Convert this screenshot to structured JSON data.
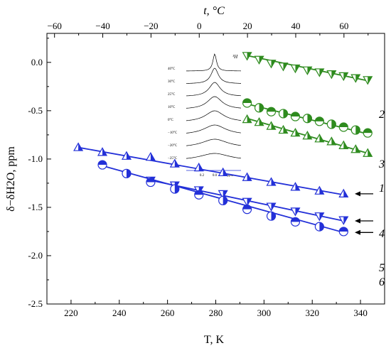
{
  "chart_data": {
    "type": "scatter",
    "title": "",
    "xlabel": "T, K",
    "ylabel": "δ−δH2O, ppm",
    "x2label": "t, °C",
    "xlim": [
      210,
      350
    ],
    "ylim": [
      -2.5,
      0.3
    ],
    "x2lim": [
      -63.15,
      76.85
    ],
    "grid": false,
    "x_ticks": [
      220,
      240,
      260,
      280,
      300,
      320,
      340
    ],
    "y_ticks": [
      0.0,
      -0.5,
      -1.0,
      -1.5,
      -2.0,
      -2.5
    ],
    "x2_ticks": [
      -60,
      -40,
      -20,
      0,
      20,
      40,
      60
    ],
    "x_tick_labels": [
      "220",
      "240",
      "260",
      "280",
      "300",
      "320",
      "340"
    ],
    "y_tick_labels": [
      "0.0",
      "-0.5",
      "-1.0",
      "-1.5",
      "-2.0",
      "-2.5"
    ],
    "x2_tick_labels": [
      "−60",
      "−40",
      "−20",
      "0",
      "20",
      "40",
      "60"
    ],
    "series": [
      {
        "label": "2",
        "color": "#2e8b1e",
        "marker": "triangle-down",
        "x": [
          293,
          298,
          303,
          308,
          313,
          318,
          323,
          328,
          333,
          338,
          343
        ],
        "y": [
          0.07,
          0.03,
          -0.01,
          -0.04,
          -0.06,
          -0.08,
          -0.1,
          -0.12,
          -0.14,
          -0.16,
          -0.18
        ],
        "fit": [
          [
            293,
            0.07
          ],
          [
            343,
            -0.19
          ]
        ]
      },
      {
        "label": "3",
        "color": "#2e8b1e",
        "marker": "circle-half",
        "x": [
          293,
          298,
          303,
          308,
          313,
          318,
          323,
          328,
          333,
          338,
          343
        ],
        "y": [
          -0.42,
          -0.47,
          -0.51,
          -0.53,
          -0.56,
          -0.58,
          -0.61,
          -0.64,
          -0.67,
          -0.7,
          -0.73
        ],
        "fit": [
          [
            293,
            -0.43
          ],
          [
            343,
            -0.74
          ]
        ]
      },
      {
        "label": "1",
        "color": "#2e8b1e",
        "marker": "triangle-up",
        "x": [
          293,
          298,
          303,
          308,
          313,
          318,
          323,
          328,
          333,
          338,
          343
        ],
        "y": [
          -0.59,
          -0.62,
          -0.66,
          -0.7,
          -0.73,
          -0.76,
          -0.79,
          -0.82,
          -0.86,
          -0.9,
          -0.94
        ],
        "fit": [
          [
            293,
            -0.58
          ],
          [
            343,
            -0.94
          ]
        ]
      },
      {
        "label": "4",
        "color": "#2330d8",
        "marker": "triangle-up",
        "x": [
          223,
          233,
          243,
          253,
          263,
          273,
          283,
          293,
          303,
          313,
          323,
          333
        ],
        "y": [
          -0.88,
          -0.93,
          -0.97,
          -0.98,
          -1.05,
          -1.09,
          -1.14,
          -1.19,
          -1.24,
          -1.29,
          -1.33,
          -1.36
        ],
        "fit": [
          [
            223,
            -0.88
          ],
          [
            333,
            -1.37
          ]
        ]
      },
      {
        "label": "5",
        "color": "#2330d8",
        "marker": "triangle-down",
        "x": [
          253,
          263,
          273,
          283,
          293,
          303,
          313,
          323,
          333
        ],
        "y": [
          -1.22,
          -1.27,
          -1.32,
          -1.36,
          -1.44,
          -1.49,
          -1.54,
          -1.59,
          -1.63
        ],
        "fit": [
          [
            253,
            -1.22
          ],
          [
            333,
            -1.64
          ]
        ]
      },
      {
        "label": "6",
        "color": "#2330d8",
        "marker": "circle-half",
        "x": [
          233,
          243,
          253,
          263,
          273,
          283,
          293,
          303,
          313,
          323,
          333
        ],
        "y": [
          -1.06,
          -1.15,
          -1.24,
          -1.31,
          -1.37,
          -1.43,
          -1.52,
          -1.59,
          -1.65,
          -1.7,
          -1.75
        ],
        "fit": [
          [
            233,
            -1.07
          ],
          [
            333,
            -1.76
          ]
        ]
      }
    ],
    "arrows": [
      {
        "target": "4",
        "y": -1.36
      },
      {
        "target": "5",
        "y": -1.64
      },
      {
        "target": "6",
        "y": -1.76
      }
    ],
    "inset": {
      "title": "¹H",
      "temperature_labels": [
        "40°C",
        "30°C",
        "25°C",
        "10°C",
        "0°C",
        "−10°C",
        "−20°C",
        "−25°C"
      ],
      "axis_labels": [
        "0.2",
        "0.0",
        "ppm"
      ]
    }
  }
}
